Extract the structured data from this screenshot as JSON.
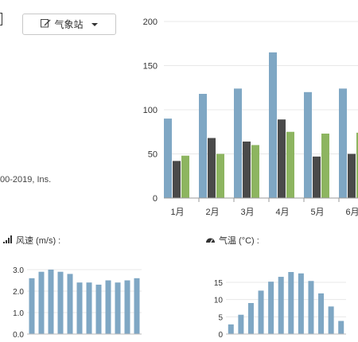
{
  "toolbar": {
    "station_label": "气象站",
    "edit_icon": "edit-icon",
    "dropdown_icon": "caret-down-icon"
  },
  "copyright_text": "00-2019, Ins.",
  "wind_section": {
    "label": "风速 (m/s) :",
    "icon": "signal-bars-icon"
  },
  "temp_section": {
    "label": "气温 (°C) :",
    "icon": "gauge-icon"
  },
  "colors": {
    "blue": "#7fa7c4",
    "dark": "#4a4a4a",
    "green": "#8db560",
    "grid": "#e8e8e8",
    "axis_text": "#333333"
  },
  "chart_data": [
    {
      "type": "bar",
      "categories": [
        "1月",
        "2月",
        "3月",
        "4月",
        "5月",
        "6月"
      ],
      "series": [
        {
          "values": [
            90,
            118,
            124,
            165,
            120,
            124
          ]
        },
        {
          "values": [
            42,
            68,
            64,
            89,
            47,
            50
          ]
        },
        {
          "values": [
            48,
            50,
            60,
            75,
            73,
            74
          ]
        }
      ],
      "ylim": [
        0,
        200
      ],
      "yticks": [
        0,
        50,
        100,
        150,
        200
      ],
      "grid": true
    },
    {
      "type": "bar",
      "values": [
        2.6,
        2.9,
        3.0,
        2.9,
        2.8,
        2.4,
        2.4,
        2.3,
        2.5,
        2.4,
        2.5,
        2.6
      ],
      "ylim": [
        0,
        3
      ],
      "yticks": [
        "0.0",
        "1.0",
        "2.0",
        "3.0"
      ],
      "grid": true
    },
    {
      "type": "bar",
      "values": [
        2.8,
        5.6,
        9.0,
        12.6,
        15.2,
        16.6,
        18.0,
        17.6,
        15.4,
        11.8,
        8.0,
        3.8
      ],
      "ylim": [
        0,
        18
      ],
      "yticks": [
        "0",
        "5",
        "10",
        "15"
      ],
      "grid": true
    }
  ]
}
